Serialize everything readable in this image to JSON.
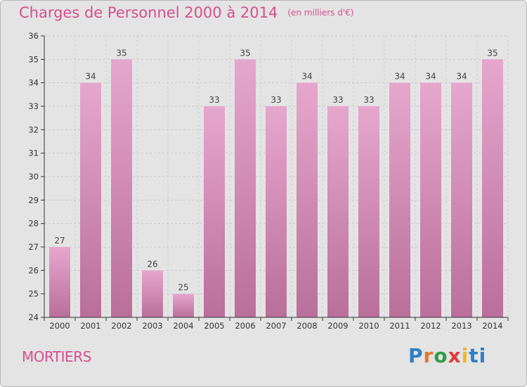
{
  "header": {
    "title": "Charges de Personnel 2000 à 2014",
    "subtitle": "(en milliers d'€)"
  },
  "footer": {
    "region": "MORTIERS",
    "logo": "Proxiti"
  },
  "colors": {
    "bar_fill": "#d98fbb",
    "bar_fill_top": "#e6a7cd",
    "bar_fill_bottom": "#b96f9a",
    "title": "#d64f8c",
    "background": "#e4e4e4"
  },
  "chart_data": {
    "type": "bar",
    "title": "Charges de Personnel 2000 à 2014",
    "xlabel": "",
    "ylabel": "",
    "categories": [
      "2000",
      "2001",
      "2002",
      "2003",
      "2004",
      "2005",
      "2006",
      "2007",
      "2008",
      "2009",
      "2010",
      "2011",
      "2012",
      "2013",
      "2014"
    ],
    "values": [
      27,
      34,
      35,
      26,
      25,
      33,
      35,
      33,
      34,
      33,
      33,
      34,
      34,
      34,
      35
    ],
    "ylim": [
      24,
      36
    ],
    "yticks": [
      24,
      25,
      26,
      27,
      28,
      29,
      30,
      31,
      32,
      33,
      34,
      35,
      36
    ],
    "grid": true,
    "legend": "none"
  }
}
